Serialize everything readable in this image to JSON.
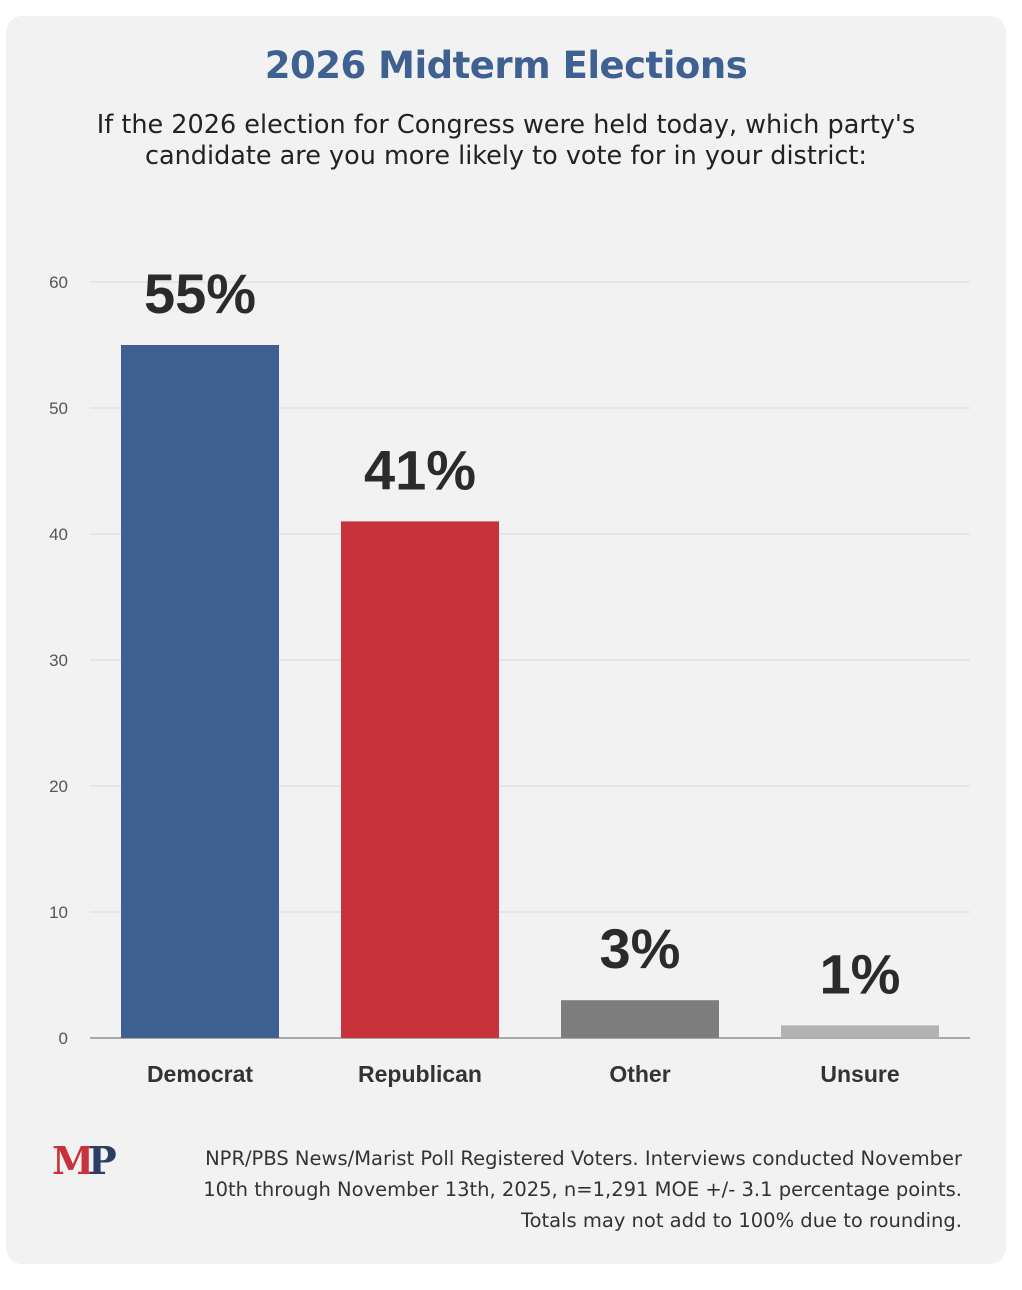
{
  "title": "2026 Midterm Elections",
  "subtitle": "If the 2026 election for Congress were held today, which party's candidate are you more likely to vote for in your district:",
  "logo": {
    "m": "M",
    "p": "P"
  },
  "footnote": "NPR/PBS News/Marist Poll Registered Voters. Interviews conducted November 10th through November 13th, 2025, n=1,291 MOE +/- 3.1 percentage points. Totals may not add to 100% due to rounding.",
  "colors": {
    "title": "#3f6192",
    "democrat": "#3f6192",
    "republican": "#c8323b",
    "other": "#7d7d7d",
    "unsure": "#b2b2b2",
    "gridline": "#e2e2e2",
    "axis": "#a8a8a8"
  },
  "chart_data": {
    "type": "bar",
    "title": "2026 Midterm Elections",
    "xlabel": "",
    "ylabel": "",
    "categories": [
      "Democrat",
      "Republican",
      "Other",
      "Unsure"
    ],
    "values": [
      55,
      41,
      3,
      1
    ],
    "value_labels": [
      "55%",
      "41%",
      "3%",
      "1%"
    ],
    "bar_colors": [
      "#3f6192",
      "#c8323b",
      "#7d7d7d",
      "#b2b2b2"
    ],
    "ylim": [
      0,
      60
    ],
    "yticks": [
      0,
      10,
      20,
      30,
      40,
      50,
      60
    ],
    "grid": true,
    "legend": "none"
  }
}
